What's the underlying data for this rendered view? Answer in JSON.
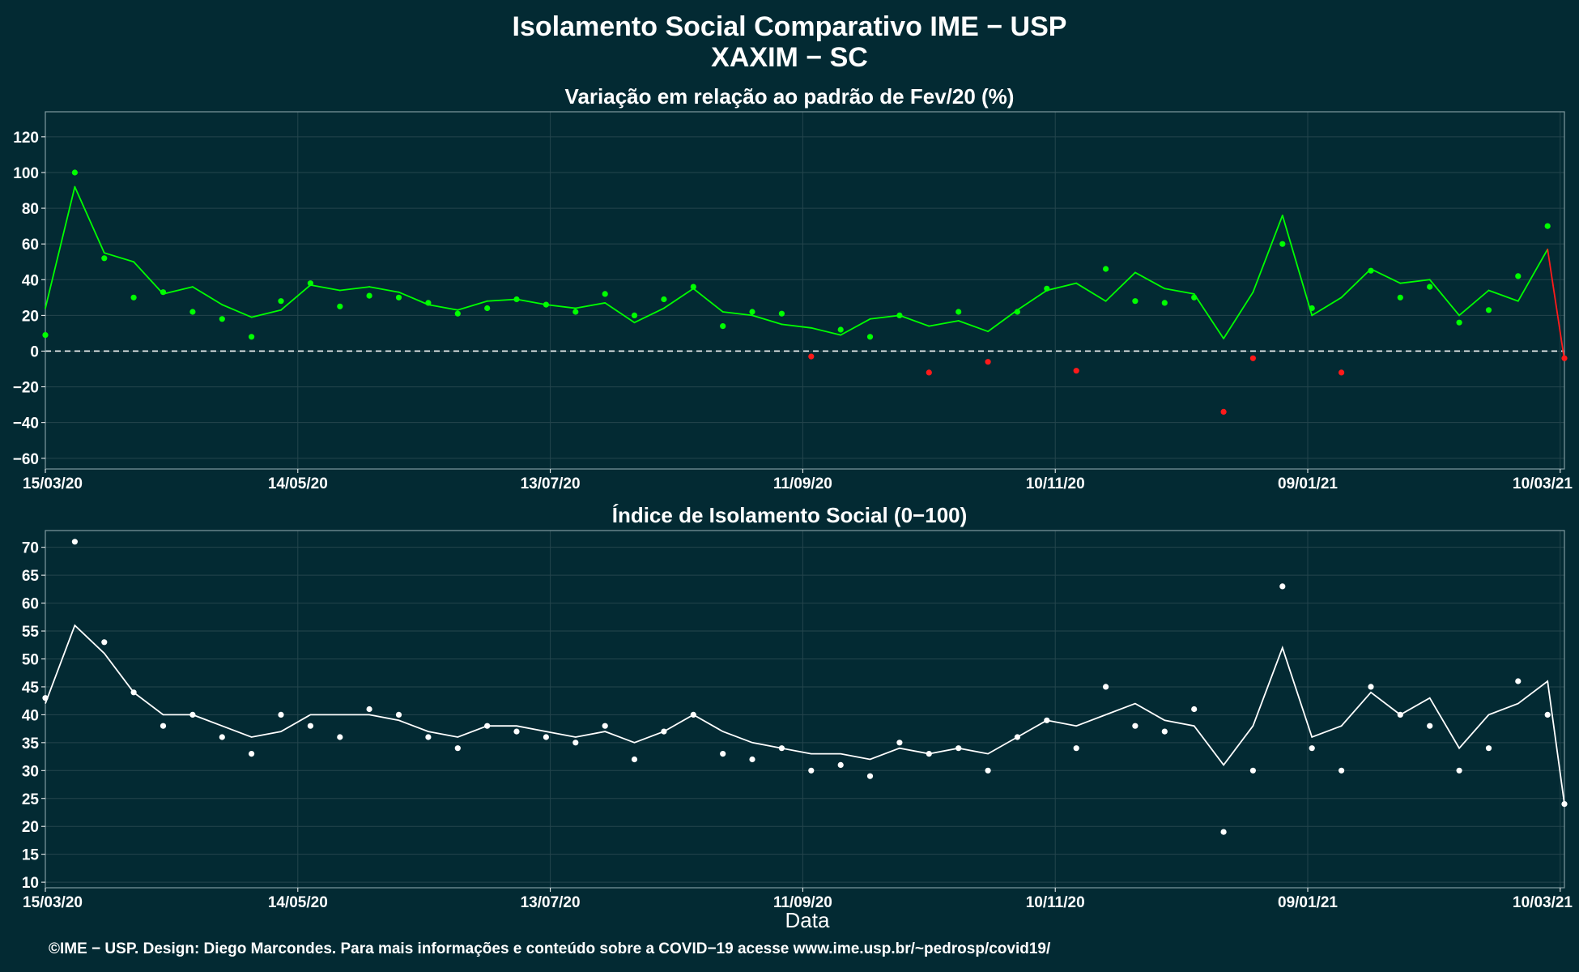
{
  "title": "Isolamento Social Comparativo IME − USP",
  "subtitle": "XAXIM − SC",
  "footer": "©IME − USP. Design: Diego Marcondes. Para mais informações e conteúdo sobre a COVID−19 acesse www.ime.usp.br/~pedrosp/covid19/",
  "colors": {
    "background": "#032a33",
    "positive": "#00ff00",
    "negative": "#ff1a1a",
    "index": "#ffffff"
  },
  "chart_data": [
    {
      "type": "scatter",
      "title": "Variação em relação ao padrão de Fev/20 (%)",
      "xlabel": "",
      "ylabel": "",
      "x_ticks": [
        "15/03/20",
        "14/05/20",
        "13/07/20",
        "11/09/20",
        "10/11/20",
        "09/01/21",
        "10/03/21"
      ],
      "y_ticks": [
        -60,
        -40,
        -20,
        0,
        20,
        40,
        60,
        80,
        100,
        120
      ],
      "xlim": [
        "15/03/20",
        "11/03/21"
      ],
      "ylim": [
        -66,
        134
      ],
      "reference_line": 0,
      "series": [
        {
          "key": "points",
          "style": "points colored by sign",
          "x": [
            "15/03/20",
            "22/03/20",
            "29/03/20",
            "05/04/20",
            "12/04/20",
            "19/04/20",
            "26/04/20",
            "03/05/20",
            "10/05/20",
            "17/05/20",
            "24/05/20",
            "31/05/20",
            "07/06/20",
            "14/06/20",
            "21/06/20",
            "28/06/20",
            "05/07/20",
            "12/07/20",
            "19/07/20",
            "26/07/20",
            "02/08/20",
            "09/08/20",
            "16/08/20",
            "23/08/20",
            "30/08/20",
            "06/09/20",
            "13/09/20",
            "20/09/20",
            "27/09/20",
            "04/10/20",
            "11/10/20",
            "18/10/20",
            "25/10/20",
            "01/11/20",
            "08/11/20",
            "15/11/20",
            "22/11/20",
            "29/11/20",
            "06/12/20",
            "13/12/20",
            "20/12/20",
            "27/12/20",
            "03/01/21",
            "10/01/21",
            "17/01/21",
            "24/01/21",
            "31/01/21",
            "07/02/21",
            "14/02/21",
            "21/02/21",
            "28/02/21",
            "07/03/21",
            "11/03/21"
          ],
          "y": [
            9,
            100,
            52,
            30,
            33,
            22,
            18,
            8,
            28,
            38,
            25,
            31,
            30,
            27,
            21,
            24,
            29,
            26,
            22,
            32,
            20,
            29,
            36,
            14,
            22,
            21,
            -3,
            12,
            8,
            20,
            -12,
            22,
            -6,
            22,
            35,
            -11,
            46,
            28,
            27,
            30,
            -34,
            -4,
            60,
            24,
            -12,
            45,
            30,
            36,
            16,
            23,
            42,
            70,
            -4
          ]
        },
        {
          "key": "trend",
          "style": "7-day moving average line",
          "x": [
            "15/03/20",
            "22/03/20",
            "29/03/20",
            "05/04/20",
            "12/04/20",
            "19/04/20",
            "26/04/20",
            "03/05/20",
            "10/05/20",
            "17/05/20",
            "24/05/20",
            "31/05/20",
            "07/06/20",
            "14/06/20",
            "21/06/20",
            "28/06/20",
            "05/07/20",
            "12/07/20",
            "19/07/20",
            "26/07/20",
            "02/08/20",
            "09/08/20",
            "16/08/20",
            "23/08/20",
            "30/08/20",
            "06/09/20",
            "13/09/20",
            "20/09/20",
            "27/09/20",
            "04/10/20",
            "11/10/20",
            "18/10/20",
            "25/10/20",
            "01/11/20",
            "08/11/20",
            "15/11/20",
            "22/11/20",
            "29/11/20",
            "06/12/20",
            "13/12/20",
            "20/12/20",
            "27/12/20",
            "03/01/21",
            "10/01/21",
            "17/01/21",
            "24/01/21",
            "31/01/21",
            "07/02/21",
            "14/02/21",
            "21/02/21",
            "28/02/21",
            "07/03/21",
            "11/03/21"
          ],
          "y": [
            24,
            92,
            55,
            50,
            32,
            36,
            26,
            19,
            23,
            37,
            34,
            36,
            33,
            26,
            23,
            28,
            29,
            26,
            24,
            27,
            16,
            24,
            35,
            22,
            20,
            15,
            13,
            9,
            18,
            20,
            14,
            17,
            11,
            23,
            34,
            38,
            28,
            44,
            35,
            32,
            7,
            33,
            76,
            20,
            30,
            46,
            38,
            40,
            20,
            34,
            28,
            57,
            -5
          ]
        }
      ]
    },
    {
      "type": "scatter",
      "title": "Índice de Isolamento Social (0−100)",
      "xlabel": "Data",
      "ylabel": "",
      "x_ticks": [
        "15/03/20",
        "14/05/20",
        "13/07/20",
        "11/09/20",
        "10/11/20",
        "09/01/21",
        "10/03/21"
      ],
      "y_ticks": [
        10,
        15,
        20,
        25,
        30,
        35,
        40,
        45,
        50,
        55,
        60,
        65,
        70
      ],
      "xlim": [
        "15/03/20",
        "11/03/21"
      ],
      "ylim": [
        9,
        73
      ],
      "series": [
        {
          "key": "points",
          "style": "points",
          "x": [
            "15/03/20",
            "22/03/20",
            "29/03/20",
            "05/04/20",
            "12/04/20",
            "19/04/20",
            "26/04/20",
            "03/05/20",
            "10/05/20",
            "17/05/20",
            "24/05/20",
            "31/05/20",
            "07/06/20",
            "14/06/20",
            "21/06/20",
            "28/06/20",
            "05/07/20",
            "12/07/20",
            "19/07/20",
            "26/07/20",
            "02/08/20",
            "09/08/20",
            "16/08/20",
            "23/08/20",
            "30/08/20",
            "06/09/20",
            "13/09/20",
            "20/09/20",
            "27/09/20",
            "04/10/20",
            "11/10/20",
            "18/10/20",
            "25/10/20",
            "01/11/20",
            "08/11/20",
            "15/11/20",
            "22/11/20",
            "29/11/20",
            "06/12/20",
            "13/12/20",
            "20/12/20",
            "27/12/20",
            "03/01/21",
            "10/01/21",
            "17/01/21",
            "24/01/21",
            "31/01/21",
            "07/02/21",
            "14/02/21",
            "21/02/21",
            "28/02/21",
            "07/03/21",
            "11/03/21"
          ],
          "y": [
            43,
            71,
            53,
            44,
            38,
            40,
            36,
            33,
            40,
            38,
            36,
            41,
            40,
            36,
            34,
            38,
            37,
            36,
            35,
            38,
            32,
            37,
            40,
            33,
            32,
            34,
            30,
            31,
            29,
            35,
            33,
            34,
            30,
            36,
            39,
            34,
            45,
            38,
            37,
            41,
            19,
            30,
            63,
            34,
            30,
            45,
            40,
            38,
            30,
            34,
            46,
            40,
            24
          ]
        },
        {
          "key": "trend",
          "style": "7-day moving average line",
          "x": [
            "15/03/20",
            "22/03/20",
            "29/03/20",
            "05/04/20",
            "12/04/20",
            "19/04/20",
            "26/04/20",
            "03/05/20",
            "10/05/20",
            "17/05/20",
            "24/05/20",
            "31/05/20",
            "07/06/20",
            "14/06/20",
            "21/06/20",
            "28/06/20",
            "05/07/20",
            "12/07/20",
            "19/07/20",
            "26/07/20",
            "02/08/20",
            "09/08/20",
            "16/08/20",
            "23/08/20",
            "30/08/20",
            "06/09/20",
            "13/09/20",
            "20/09/20",
            "27/09/20",
            "04/10/20",
            "11/10/20",
            "18/10/20",
            "25/10/20",
            "01/11/20",
            "08/11/20",
            "15/11/20",
            "22/11/20",
            "29/11/20",
            "06/12/20",
            "13/12/20",
            "20/12/20",
            "27/12/20",
            "03/01/21",
            "10/01/21",
            "17/01/21",
            "24/01/21",
            "31/01/21",
            "07/02/21",
            "14/02/21",
            "21/02/21",
            "28/02/21",
            "07/03/21",
            "11/03/21"
          ],
          "y": [
            42,
            56,
            51,
            44,
            40,
            40,
            38,
            36,
            37,
            40,
            40,
            40,
            39,
            37,
            36,
            38,
            38,
            37,
            36,
            37,
            35,
            37,
            40,
            37,
            35,
            34,
            33,
            33,
            32,
            34,
            33,
            34,
            33,
            36,
            39,
            38,
            40,
            42,
            39,
            38,
            31,
            38,
            52,
            36,
            38,
            44,
            40,
            43,
            34,
            40,
            42,
            46,
            24
          ]
        }
      ]
    }
  ]
}
